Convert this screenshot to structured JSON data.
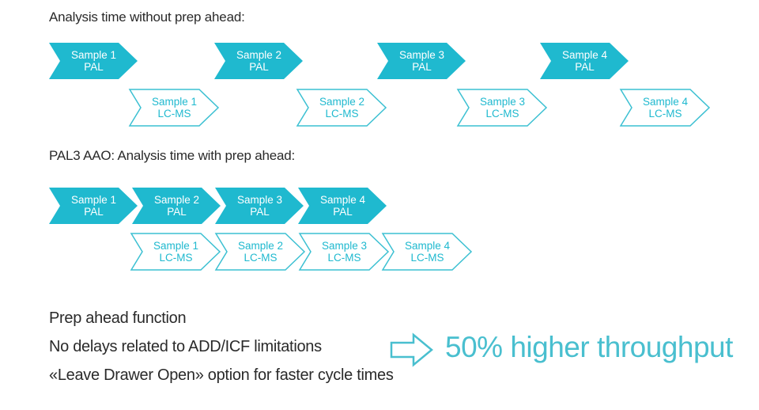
{
  "headings": {
    "without": "Analysis time without prep ahead:",
    "with": "PAL3 AAO: Analysis time with prep ahead:"
  },
  "rows": {
    "without_pal": [
      {
        "line1": "Sample 1",
        "line2": "PAL"
      },
      {
        "line1": "Sample 2",
        "line2": "PAL"
      },
      {
        "line1": "Sample 3",
        "line2": "PAL"
      },
      {
        "line1": "Sample 4",
        "line2": "PAL"
      }
    ],
    "without_lcms": [
      {
        "line1": "Sample 1",
        "line2": "LC-MS"
      },
      {
        "line1": "Sample 2",
        "line2": "LC-MS"
      },
      {
        "line1": "Sample 3",
        "line2": "LC-MS"
      },
      {
        "line1": "Sample 4",
        "line2": "LC-MS"
      }
    ],
    "with_pal": [
      {
        "line1": "Sample 1",
        "line2": "PAL"
      },
      {
        "line1": "Sample 2",
        "line2": "PAL"
      },
      {
        "line1": "Sample 3",
        "line2": "PAL"
      },
      {
        "line1": "Sample 4",
        "line2": "PAL"
      }
    ],
    "with_lcms": [
      {
        "line1": "Sample 1",
        "line2": "LC-MS"
      },
      {
        "line1": "Sample 2",
        "line2": "LC-MS"
      },
      {
        "line1": "Sample 3",
        "line2": "LC-MS"
      },
      {
        "line1": "Sample 4",
        "line2": "LC-MS"
      }
    ]
  },
  "bullets": [
    "Prep ahead function",
    "No delays related to ADD/ICF limitations",
    "«Leave Drawer Open» option for faster cycle times"
  ],
  "result": {
    "text": "50% higher throughput",
    "icon": "outline-right-arrow-icon"
  },
  "colors": {
    "teal": "#1fb9cf",
    "outline": "#3cc0d2",
    "text_dark": "#2a2a2a",
    "result_text": "#49bfcf"
  }
}
